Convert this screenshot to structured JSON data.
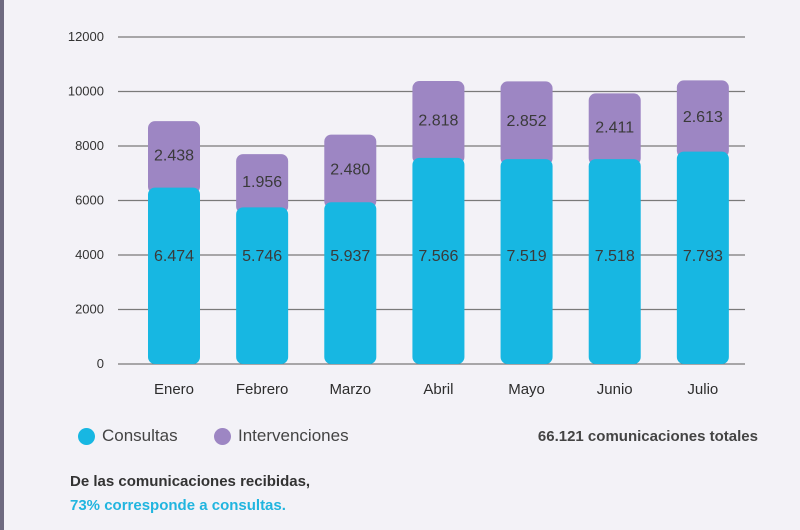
{
  "chart_data": {
    "type": "bar",
    "stacked": true,
    "categories": [
      "Enero",
      "Febrero",
      "Marzo",
      "Abril",
      "Mayo",
      "Junio",
      "Julio"
    ],
    "series": [
      {
        "name": "Consultas",
        "color": "#17b7e2",
        "values": [
          6474,
          5746,
          5937,
          7566,
          7519,
          7518,
          7793
        ],
        "labels": [
          "6.474",
          "5.746",
          "5.937",
          "7.566",
          "7.519",
          "7.518",
          "7.793"
        ]
      },
      {
        "name": "Intervenciones",
        "color": "#9d86c3",
        "values": [
          2438,
          1956,
          2480,
          2818,
          2852,
          2411,
          2613
        ],
        "labels": [
          "2.438",
          "1.956",
          "2.480",
          "2.818",
          "2.852",
          "2.411",
          "2.613"
        ]
      }
    ],
    "yticks": [
      "0",
      "2000",
      "4000",
      "6000",
      "8000",
      "10000",
      "12000"
    ],
    "ylim": [
      0,
      12000
    ],
    "grid": true,
    "legend_position": "bottom-left"
  },
  "legend": {
    "items": [
      {
        "label": "Consultas",
        "color": "#17b7e2"
      },
      {
        "label": "Intervenciones",
        "color": "#9d86c3"
      }
    ],
    "total_text": "66.121 comunicaciones totales"
  },
  "note": {
    "line1": "De las comunicaciones recibidas,",
    "line2": "73% corresponde a consultas."
  }
}
